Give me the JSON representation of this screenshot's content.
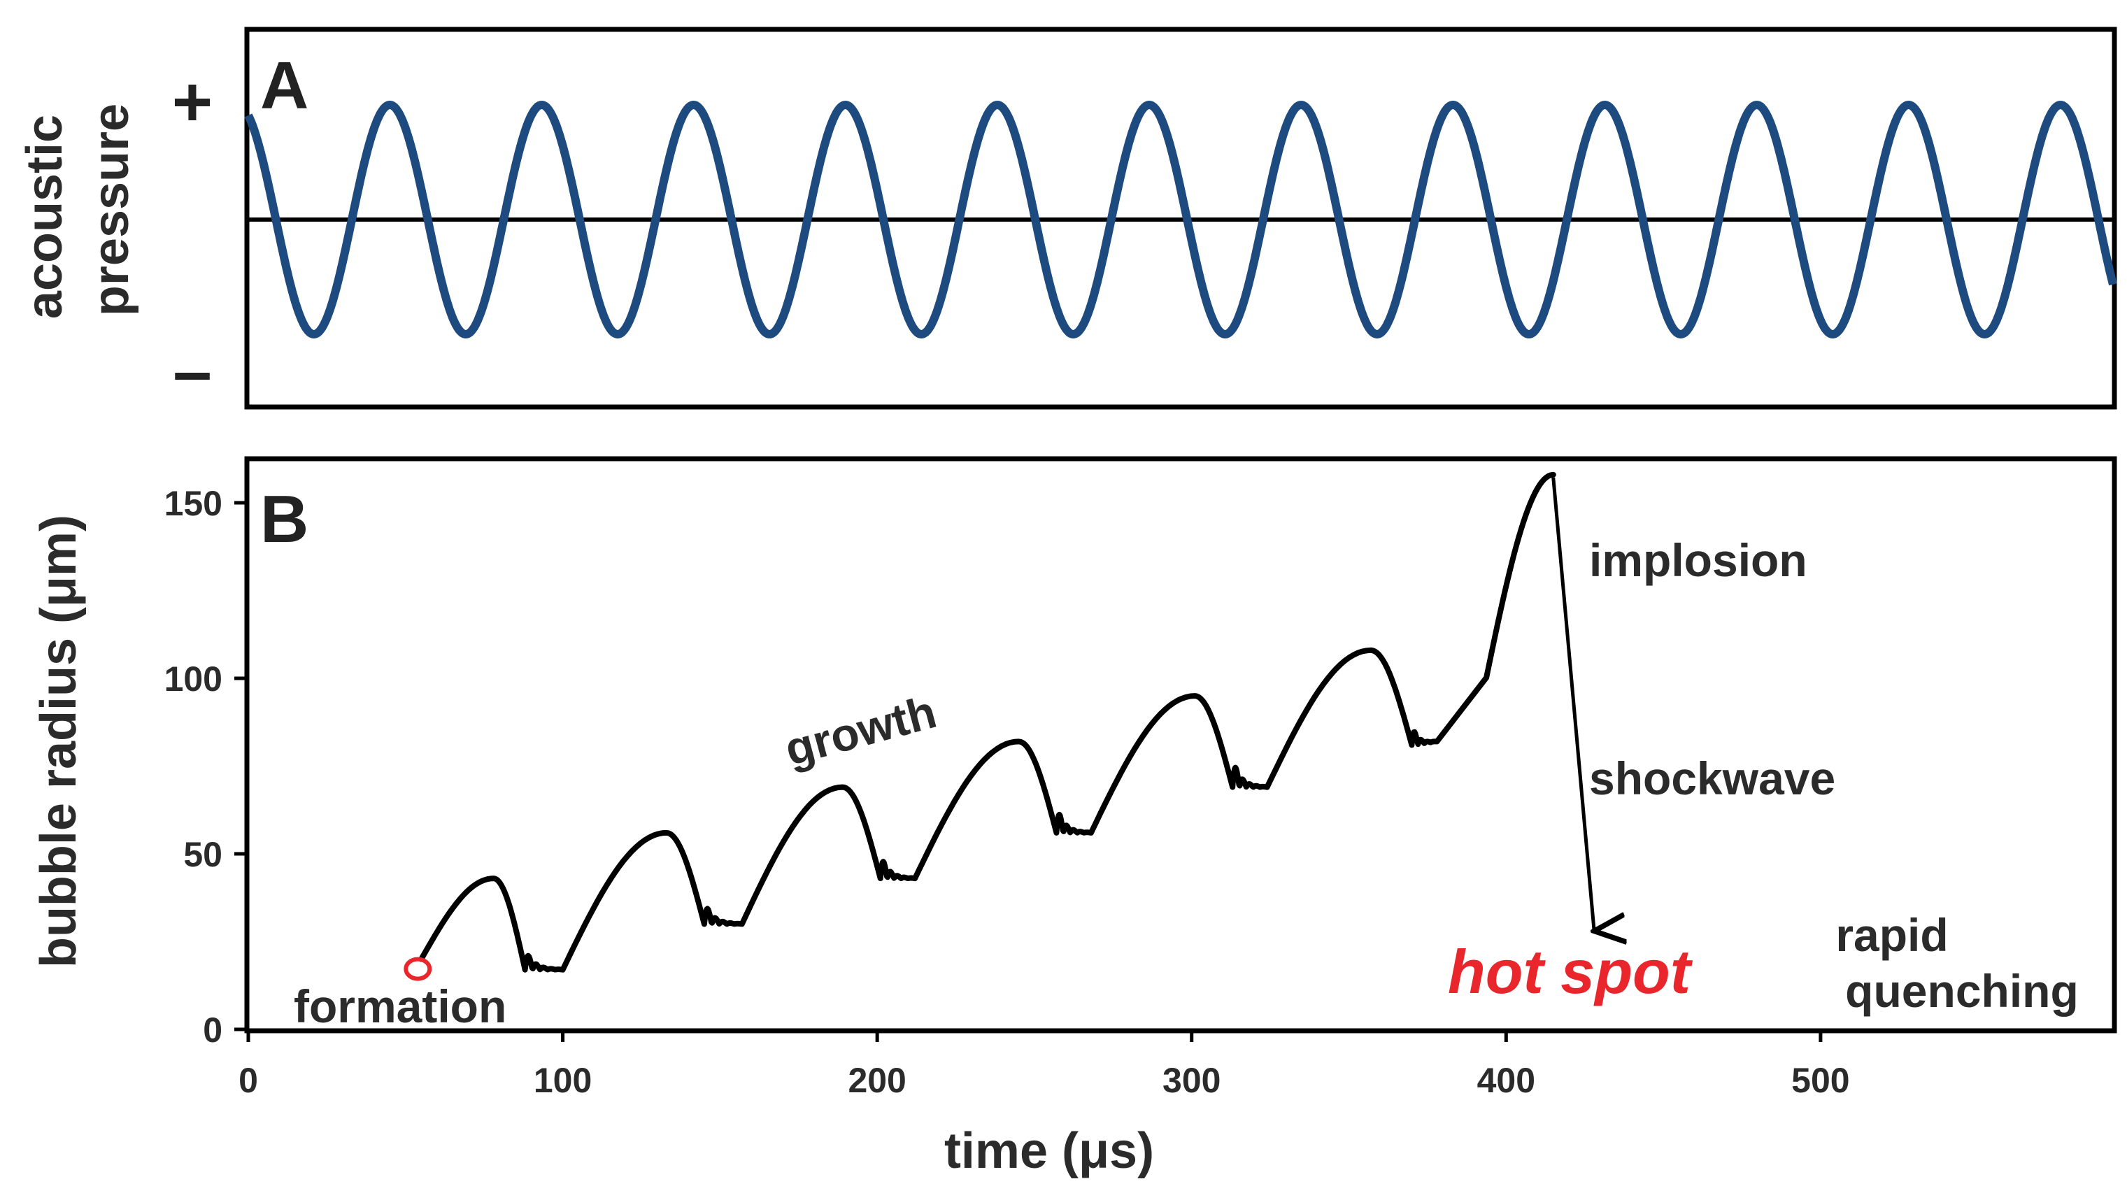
{
  "chart_data": [
    {
      "panel": "A",
      "type": "line",
      "ylabel": [
        "acoustic",
        "pressure"
      ],
      "y_sign_labels": {
        "top": "+",
        "bottom": "–"
      },
      "period_us": 48.3,
      "phase_us_at_crest": 45,
      "x_range": [
        0,
        593
      ],
      "amplitude": 1,
      "grid": false,
      "colors": {
        "wave": "#1d4a7f",
        "baseline": "#000000"
      }
    },
    {
      "panel": "B",
      "type": "line",
      "xlabel": "time  (μs)",
      "ylabel": "bubble radius  (μm)",
      "xlim": [
        0,
        593
      ],
      "ylim": [
        0,
        160
      ],
      "xticks": [
        0,
        100,
        200,
        300,
        400,
        500
      ],
      "yticks": [
        0,
        50,
        100,
        150
      ],
      "series": [
        {
          "name": "bubble radius",
          "x": [
            55,
            78,
            88,
            100,
            133,
            145,
            157,
            189,
            201,
            212,
            245,
            257,
            268,
            301,
            313,
            324,
            357,
            370,
            378,
            393,
            415,
            428
          ],
          "y": [
            20,
            43,
            17,
            17,
            56,
            30,
            30,
            69,
            43,
            43,
            82,
            56,
            56,
            95,
            69,
            69,
            108,
            81,
            82,
            97,
            158,
            28
          ]
        }
      ],
      "annotations": {
        "formation": "formation",
        "growth": "growth",
        "implosion": "implosion",
        "shockwave": "shockwave",
        "hot_spot": "hot spot",
        "rapid": "rapid",
        "quenching": "quenching"
      },
      "colors": {
        "curve": "#000000",
        "hot_spot": "#e8262b",
        "formation_marker": "#e8262b"
      }
    }
  ]
}
